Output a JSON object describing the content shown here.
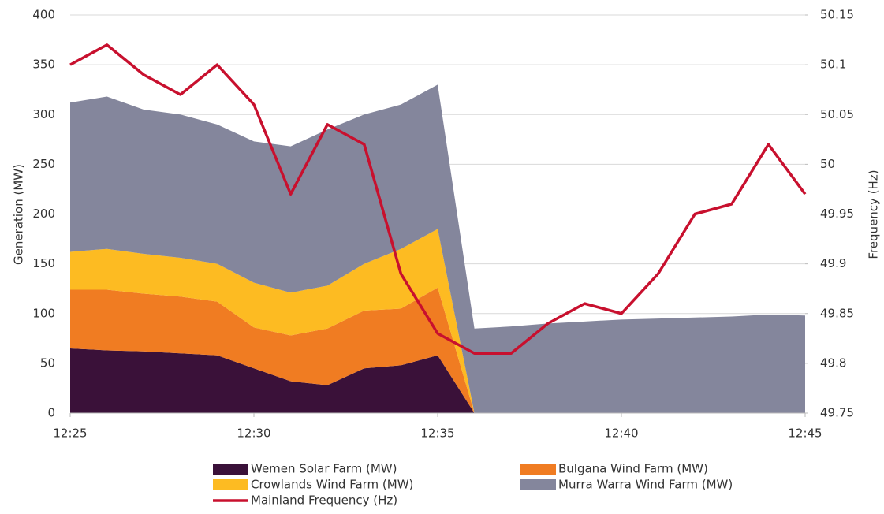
{
  "chart_data": {
    "type": "stacked-area-line",
    "x": [
      "12:25",
      "12:26",
      "12:27",
      "12:28",
      "12:29",
      "12:30",
      "12:31",
      "12:32",
      "12:33",
      "12:34",
      "12:35",
      "12:36",
      "12:37",
      "12:38",
      "12:39",
      "12:40",
      "12:41",
      "12:42",
      "12:43",
      "12:44",
      "12:45"
    ],
    "xlim": [
      "12:25",
      "12:45"
    ],
    "xticks": [
      "12:25",
      "12:30",
      "12:35",
      "12:40",
      "12:45"
    ],
    "ylim": [
      0,
      400
    ],
    "yticks": [
      0,
      50,
      100,
      150,
      200,
      250,
      300,
      350,
      400
    ],
    "y2lim": [
      49.75,
      50.15
    ],
    "y2ticks": [
      49.75,
      49.8,
      49.85,
      49.9,
      49.95,
      50,
      50.05,
      50.1,
      50.15
    ],
    "ylabel": "Generation (MW)",
    "y2label": "Frequency (Hz)",
    "grid": true,
    "series": [
      {
        "name": "Wemen Solar Farm (MW)",
        "color": "#3a1139",
        "kind": "area",
        "values": [
          65,
          63,
          62,
          60,
          58,
          45,
          32,
          28,
          45,
          48,
          58,
          0,
          0,
          0,
          0,
          0,
          0,
          0,
          0,
          0,
          0
        ]
      },
      {
        "name": "Bulgana Wind Farm (MW)",
        "color": "#f07c22",
        "kind": "area",
        "values": [
          59,
          61,
          58,
          57,
          54,
          41,
          46,
          57,
          58,
          57,
          68,
          0,
          0,
          0,
          0,
          0,
          0,
          0,
          0,
          0,
          0
        ]
      },
      {
        "name": "Crowlands Wind Farm (MW)",
        "color": "#fdbb22",
        "kind": "area",
        "values": [
          38,
          41,
          40,
          39,
          38,
          45,
          43,
          43,
          47,
          60,
          59,
          0,
          0,
          0,
          0,
          0,
          0,
          0,
          0,
          0,
          0
        ]
      },
      {
        "name": "Murra Warra Wind Farm (MW)",
        "color": "#84869c",
        "kind": "area",
        "values": [
          150,
          153,
          145,
          144,
          140,
          142,
          147,
          157,
          150,
          145,
          145,
          85,
          87,
          90,
          92,
          94,
          95,
          96,
          97,
          99,
          98
        ]
      },
      {
        "name": "Mainland Frequency (Hz)",
        "color": "#c8102e",
        "kind": "line",
        "axis": "y2",
        "values": [
          50.1,
          50.12,
          50.09,
          50.07,
          50.1,
          50.06,
          49.97,
          50.04,
          50.02,
          49.89,
          49.83,
          49.81,
          49.81,
          49.84,
          49.86,
          49.85,
          49.89,
          49.95,
          49.96,
          50.02,
          49.97
        ]
      }
    ]
  }
}
